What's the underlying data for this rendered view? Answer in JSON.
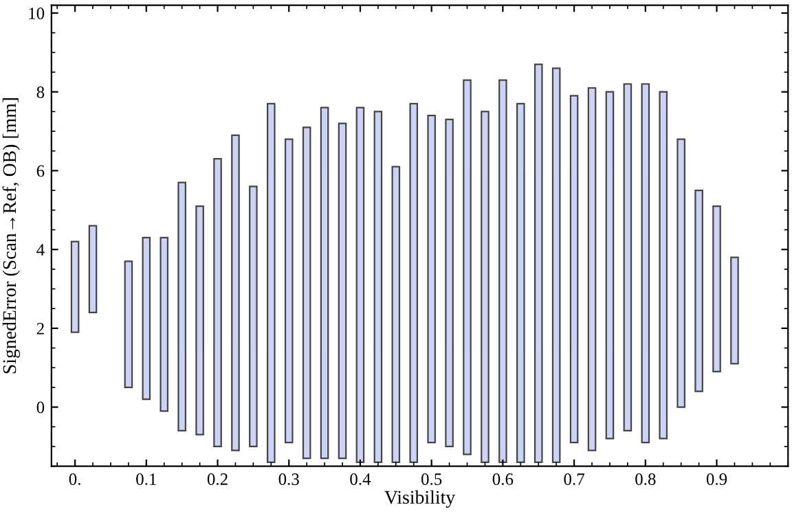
{
  "chart_data": {
    "type": "bar",
    "xlabel": "Visibility",
    "ylabel": "SignedError (Scan→Ref, OB) [mm]",
    "x": [
      0,
      0.025,
      0.075,
      0.1,
      0.125,
      0.15,
      0.175,
      0.2,
      0.225,
      0.25,
      0.275,
      0.3,
      0.325,
      0.35,
      0.375,
      0.4,
      0.425,
      0.45,
      0.475,
      0.5,
      0.525,
      0.55,
      0.575,
      0.6,
      0.625,
      0.65,
      0.675,
      0.7,
      0.725,
      0.75,
      0.775,
      0.8,
      0.825,
      0.85,
      0.875,
      0.9,
      0.925
    ],
    "base": [
      1.9,
      2.4,
      0.5,
      0.2,
      -0.1,
      -0.6,
      -0.7,
      -1.0,
      -1.1,
      -1.0,
      -1.4,
      -0.9,
      -1.3,
      -1.3,
      -1.3,
      -1.4,
      -1.4,
      -1.4,
      -1.4,
      -0.9,
      -1.0,
      -1.2,
      -1.4,
      -1.4,
      -1.4,
      -1.4,
      -1.4,
      -0.9,
      -1.1,
      -0.8,
      -0.6,
      -0.9,
      -0.8,
      0.0,
      0.4,
      0.9,
      1.1
    ],
    "values": [
      2.3,
      2.2,
      3.2,
      4.1,
      4.4,
      6.3,
      5.8,
      7.3,
      8.0,
      6.6,
      9.1,
      7.7,
      8.4,
      8.9,
      8.5,
      9.0,
      8.9,
      7.5,
      9.1,
      8.3,
      8.3,
      9.5,
      8.9,
      9.7,
      9.1,
      10.1,
      10.0,
      8.8,
      9.2,
      8.8,
      8.8,
      9.1,
      8.8,
      6.8,
      5.1,
      4.2,
      2.7
    ],
    "color": "#ccd3f4",
    "xlim": [
      -0.033,
      1.0
    ],
    "xticks": [
      {
        "value": 0,
        "label": "0."
      },
      0.1,
      0.2,
      0.3,
      0.4,
      0.5,
      0.6,
      0.7,
      0.8,
      0.9
    ],
    "ylim": [
      -1.5,
      10.2
    ],
    "yticks": [
      0,
      2,
      4,
      6,
      8,
      10
    ],
    "grid": false
  }
}
